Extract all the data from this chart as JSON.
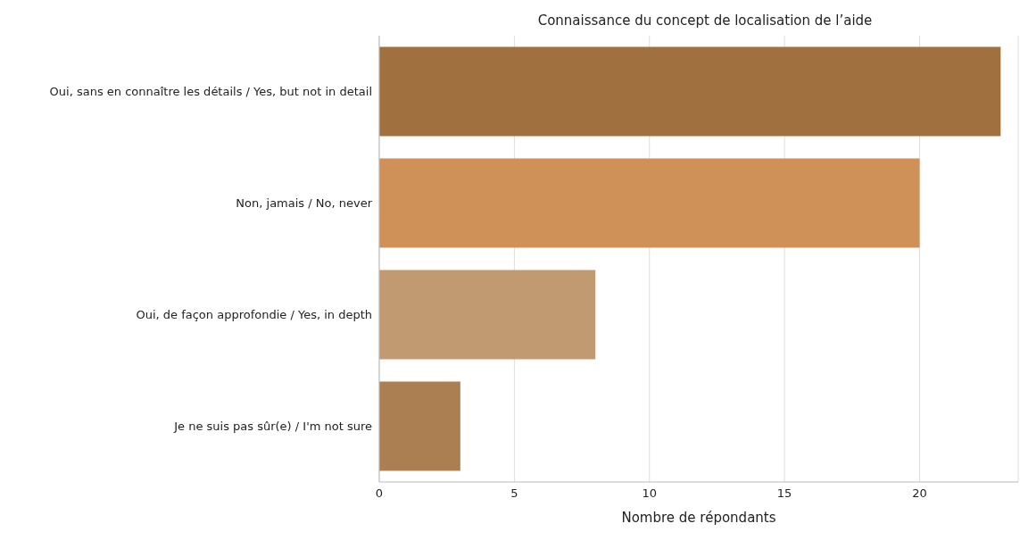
{
  "chart_data": {
    "type": "bar",
    "orientation": "horizontal",
    "title": "Connaissance du concept de localisation de l’aide",
    "xlabel": "Nombre de répondants",
    "categories": [
      "Oui, sans en connaître les détails / Yes, but not in detail",
      "Non, jamais / No, never",
      "Oui, de façon approfondie / Yes, in depth",
      "Je ne suis pas sûr(e) / I'm not sure"
    ],
    "values": [
      23,
      20,
      8,
      3
    ],
    "colors": [
      "#a0703e",
      "#cf9157",
      "#c19a72",
      "#ab7f51"
    ],
    "xlim": [
      0,
      23.65
    ],
    "xticks": [
      0,
      5,
      10,
      15,
      20
    ],
    "grid": "x"
  }
}
